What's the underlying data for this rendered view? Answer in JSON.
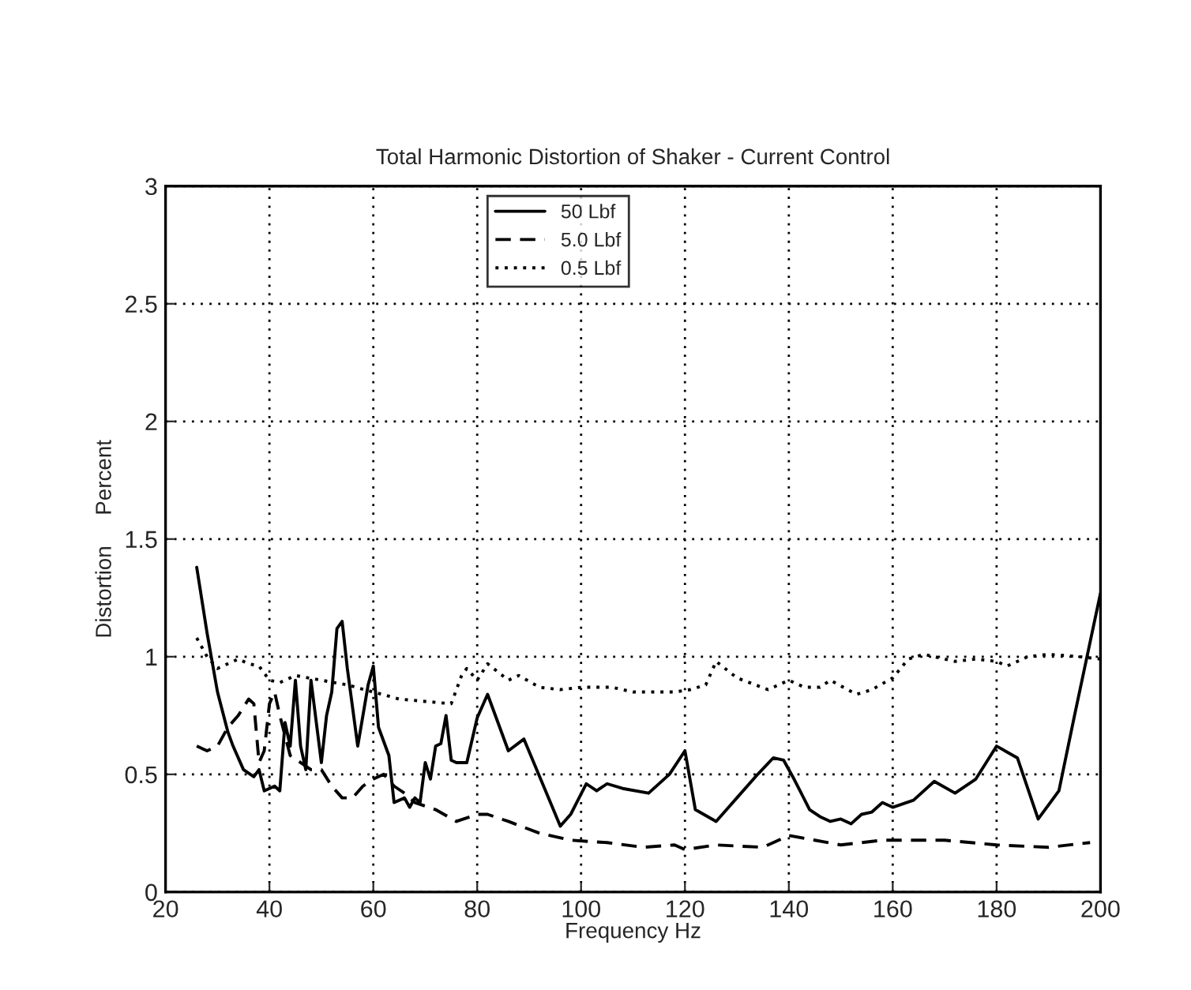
{
  "chart_data": {
    "type": "line",
    "title": "Total Harmonic Distortion of Shaker - Current Control",
    "xlabel": "Frequency Hz",
    "ylabel": "Distortion     Percent",
    "xlim": [
      20,
      200
    ],
    "xticks": [
      20,
      40,
      60,
      80,
      100,
      120,
      140,
      160,
      180,
      200
    ],
    "ylim": [
      0,
      3
    ],
    "yticks": [
      0,
      0.5,
      1,
      1.5,
      2,
      2.5,
      3
    ],
    "grid": true,
    "legend": "top",
    "marker": "none",
    "series": [
      {
        "name": "50 Lbf",
        "color": "#000000",
        "line_style": "solid",
        "x": [
          26,
          28,
          30,
          32,
          33,
          35,
          37,
          38,
          39,
          41,
          42,
          43,
          44,
          45,
          46,
          47,
          48,
          50,
          51,
          52,
          53,
          54,
          55,
          57,
          59,
          60,
          61,
          63,
          64,
          66,
          67,
          68,
          69,
          70,
          71,
          72,
          73,
          74,
          75,
          76,
          78,
          80,
          82,
          86,
          89,
          96,
          98,
          101,
          103,
          105,
          108,
          113,
          117,
          120,
          122,
          126,
          130,
          134,
          137,
          139,
          141,
          144,
          146,
          148,
          150,
          152,
          154,
          156,
          158,
          160,
          164,
          168,
          172,
          176,
          180,
          184,
          188,
          192,
          195,
          200
        ],
        "values": [
          1.38,
          1.1,
          0.85,
          0.68,
          0.62,
          0.52,
          0.49,
          0.52,
          0.43,
          0.45,
          0.43,
          0.72,
          0.62,
          0.9,
          0.62,
          0.52,
          0.9,
          0.55,
          0.75,
          0.85,
          1.12,
          1.15,
          0.95,
          0.62,
          0.88,
          0.96,
          0.7,
          0.58,
          0.38,
          0.4,
          0.36,
          0.4,
          0.38,
          0.55,
          0.48,
          0.62,
          0.63,
          0.75,
          0.56,
          0.55,
          0.55,
          0.74,
          0.84,
          0.6,
          0.65,
          0.28,
          0.33,
          0.46,
          0.43,
          0.46,
          0.44,
          0.42,
          0.5,
          0.6,
          0.35,
          0.3,
          0.4,
          0.5,
          0.57,
          0.56,
          0.48,
          0.35,
          0.32,
          0.3,
          0.31,
          0.29,
          0.33,
          0.34,
          0.38,
          0.36,
          0.39,
          0.47,
          0.42,
          0.48,
          0.62,
          0.57,
          0.31,
          0.43,
          0.75,
          1.27
        ]
      },
      {
        "name": "5.0 Lbf",
        "color": "#000000",
        "line_style": "dashed",
        "x": [
          26,
          28,
          30,
          32,
          34,
          36,
          37,
          38,
          39,
          40,
          41,
          42,
          44,
          46,
          48,
          50,
          52,
          54,
          56,
          58,
          60,
          62,
          64,
          66,
          68,
          72,
          76,
          80,
          82,
          86,
          92,
          98,
          105,
          112,
          118,
          120,
          126,
          135,
          140,
          145,
          150,
          158,
          170,
          180,
          190,
          198
        ],
        "values": [
          0.62,
          0.6,
          0.62,
          0.7,
          0.75,
          0.82,
          0.8,
          0.55,
          0.6,
          0.8,
          0.85,
          0.75,
          0.58,
          0.55,
          0.52,
          0.52,
          0.45,
          0.4,
          0.4,
          0.45,
          0.48,
          0.5,
          0.45,
          0.42,
          0.38,
          0.35,
          0.3,
          0.33,
          0.33,
          0.3,
          0.25,
          0.22,
          0.21,
          0.19,
          0.2,
          0.18,
          0.2,
          0.19,
          0.24,
          0.22,
          0.2,
          0.22,
          0.22,
          0.2,
          0.19,
          0.21
        ]
      },
      {
        "name": "0.5 Lbf",
        "color": "#000000",
        "line_style": "dotted",
        "x": [
          26,
          28,
          30,
          34,
          36,
          38,
          40,
          42,
          45,
          50,
          55,
          60,
          65,
          70,
          75,
          77,
          78,
          80,
          82,
          86,
          88,
          92,
          96,
          100,
          106,
          110,
          118,
          121,
          124,
          126,
          130,
          136,
          140,
          143,
          146,
          148,
          153,
          156,
          160,
          163,
          166,
          172,
          176,
          180,
          182,
          186,
          190,
          196,
          200
        ],
        "values": [
          1.08,
          1.0,
          0.95,
          0.99,
          0.97,
          0.96,
          0.9,
          0.89,
          0.92,
          0.9,
          0.88,
          0.85,
          0.82,
          0.81,
          0.8,
          0.92,
          0.95,
          0.9,
          0.97,
          0.9,
          0.92,
          0.87,
          0.86,
          0.87,
          0.87,
          0.85,
          0.85,
          0.86,
          0.88,
          0.98,
          0.91,
          0.86,
          0.9,
          0.87,
          0.87,
          0.9,
          0.84,
          0.86,
          0.91,
          0.99,
          1.01,
          0.98,
          0.99,
          0.98,
          0.96,
          1.0,
          1.01,
          1.0,
          0.99
        ]
      }
    ]
  }
}
